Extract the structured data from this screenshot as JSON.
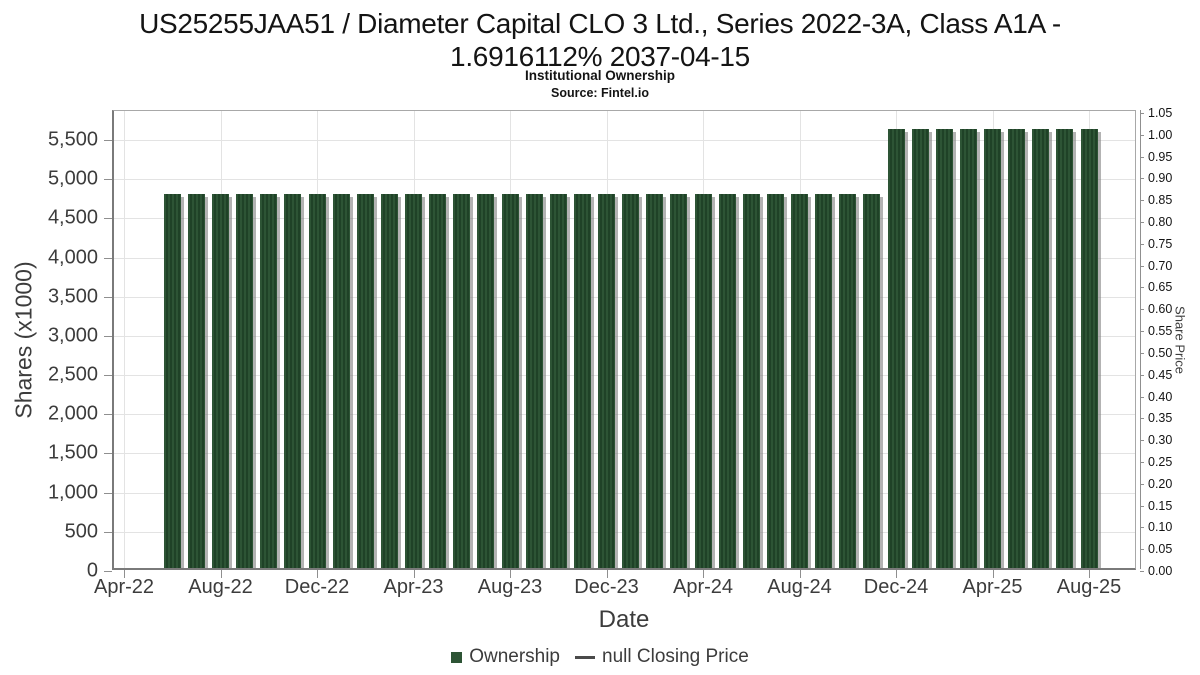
{
  "header": {
    "title_line1": "US25255JAA51 / Diameter Capital CLO 3 Ltd., Series 2022-3A, Class A1A -",
    "title_line2": "1.6916112% 2037-04-15",
    "subtitle": "Institutional Ownership",
    "source": "Source: Fintel.io"
  },
  "legend": {
    "items": [
      {
        "label": "Ownership",
        "marker": "square",
        "color": "#2d5435"
      },
      {
        "label": "null Closing Price",
        "marker": "line",
        "color": "#4a4a4a"
      }
    ]
  },
  "chart_data": {
    "type": "bar",
    "title": "US25255JAA51 / Diameter Capital CLO 3 Ltd., Series 2022-3A, Class A1A - 1.6916112% 2037-04-15",
    "subtitle": "Institutional Ownership",
    "source": "Source: Fintel.io",
    "xlabel": "Date",
    "ylabel_left": "Shares (x1000)",
    "ylabel_right": "Share Price",
    "legend_position": "bottom",
    "grid": true,
    "x_axis_start": "Apr-22",
    "x_tick_labels": [
      "Apr-22",
      "Aug-22",
      "Dec-22",
      "Apr-23",
      "Aug-23",
      "Dec-23",
      "Apr-24",
      "Aug-24",
      "Dec-24",
      "Apr-25",
      "Aug-25"
    ],
    "y_left_tick_labels": [
      "0",
      "500",
      "1,000",
      "1,500",
      "2,000",
      "2,500",
      "3,000",
      "3,500",
      "4,000",
      "4,500",
      "5,000",
      "5,500"
    ],
    "y_right_tick_labels": [
      "0.00",
      "0.05",
      "0.10",
      "0.15",
      "0.20",
      "0.25",
      "0.30",
      "0.35",
      "0.40",
      "0.45",
      "0.50",
      "0.55",
      "0.60",
      "0.65",
      "0.70",
      "0.75",
      "0.80",
      "0.85",
      "0.90",
      "0.95",
      "1.00",
      "1.05"
    ],
    "ylim_left": [
      0,
      5870
    ],
    "ylim_right": [
      0,
      1.0546
    ],
    "categories": [
      "Jun-22",
      "Jul-22",
      "Aug-22",
      "Sep-22",
      "Oct-22",
      "Nov-22",
      "Dec-22",
      "Jan-23",
      "Feb-23",
      "Mar-23",
      "Apr-23",
      "May-23",
      "Jun-23",
      "Jul-23",
      "Aug-23",
      "Sep-23",
      "Oct-23",
      "Nov-23",
      "Dec-23",
      "Jan-24",
      "Feb-24",
      "Mar-24",
      "Apr-24",
      "May-24",
      "Jun-24",
      "Jul-24",
      "Aug-24",
      "Sep-24",
      "Oct-24",
      "Nov-24",
      "Dec-24",
      "Jan-25",
      "Feb-25",
      "Mar-25",
      "Apr-25",
      "May-25",
      "Jun-25",
      "Jul-25",
      "Aug-25"
    ],
    "series": [
      {
        "name": "Ownership",
        "axis": "left",
        "unit": "shares x1000",
        "values": [
          4775,
          4775,
          4775,
          4775,
          4775,
          4775,
          4775,
          4775,
          4775,
          4775,
          4775,
          4775,
          4775,
          4775,
          4775,
          4775,
          4775,
          4775,
          4775,
          4775,
          4775,
          4775,
          4775,
          4775,
          4775,
          4775,
          4775,
          4775,
          4775,
          4775,
          5600,
          5600,
          5600,
          5600,
          5600,
          5600,
          5600,
          5600,
          5600
        ]
      },
      {
        "name": "null Closing Price",
        "axis": "right",
        "values": []
      }
    ],
    "colors": {
      "bar_base": "#2d5435",
      "bar_stripe": "#1f4227",
      "bar_shadow": "rgba(128,128,128,0.6)",
      "grid": "#e3e3e3",
      "axis_spine": "#8f8f8f",
      "tick_text": "#3c3c3c"
    }
  }
}
